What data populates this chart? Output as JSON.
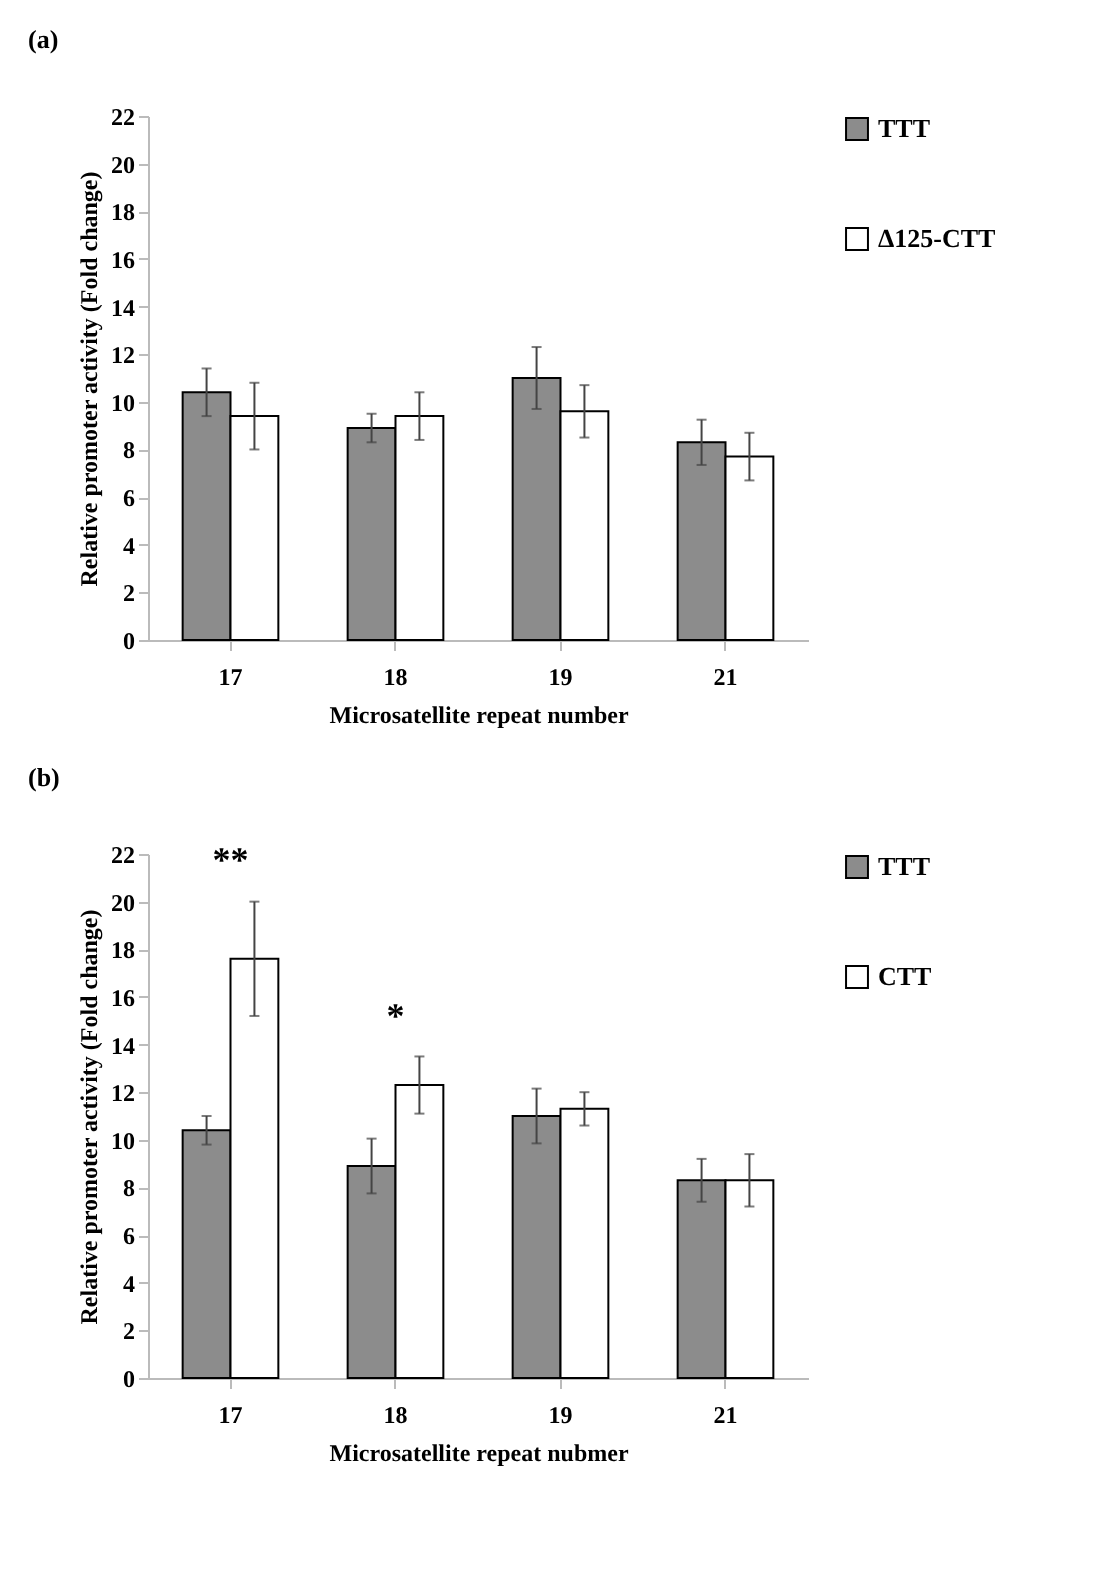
{
  "chart_data": [
    {
      "type": "bar",
      "title": "(a)",
      "xlabel": "Microsatellite repeat number",
      "ylabel": "Relative promoter activity (Fold change)",
      "categories": [
        "17",
        "18",
        "19",
        "21"
      ],
      "series": [
        {
          "name": "TTT",
          "color": "#8c8c8c",
          "values": [
            10.4,
            8.9,
            11.0,
            8.3
          ],
          "errors": [
            1.0,
            0.6,
            1.3,
            0.95
          ]
        },
        {
          "name": "Δ125-CTT",
          "color": "#ffffff",
          "values": [
            9.4,
            9.4,
            9.6,
            7.7
          ],
          "errors": [
            1.4,
            1.0,
            1.1,
            1.0
          ]
        }
      ],
      "ylim": [
        0,
        22
      ],
      "yticks": [
        0,
        2,
        4,
        6,
        8,
        10,
        12,
        14,
        16,
        18,
        20,
        22
      ],
      "grid": false,
      "legend": "right"
    },
    {
      "type": "bar",
      "title": "(b)",
      "xlabel": "Microsatellite repeat nubmer",
      "ylabel": "Relative promoter activity (Fold change)",
      "categories": [
        "17",
        "18",
        "19",
        "21"
      ],
      "series": [
        {
          "name": "TTT",
          "color": "#8c8c8c",
          "values": [
            10.4,
            8.9,
            11.0,
            8.3
          ],
          "errors": [
            0.6,
            1.15,
            1.15,
            0.9
          ]
        },
        {
          "name": "CTT",
          "color": "#ffffff",
          "values": [
            17.6,
            12.3,
            11.3,
            8.3
          ],
          "errors": [
            2.4,
            1.2,
            0.7,
            1.1
          ]
        }
      ],
      "ylim": [
        0,
        22
      ],
      "yticks": [
        0,
        2,
        4,
        6,
        8,
        10,
        12,
        14,
        16,
        18,
        20,
        22
      ],
      "grid": false,
      "legend": "right",
      "annotations": [
        "**",
        "*"
      ]
    }
  ]
}
